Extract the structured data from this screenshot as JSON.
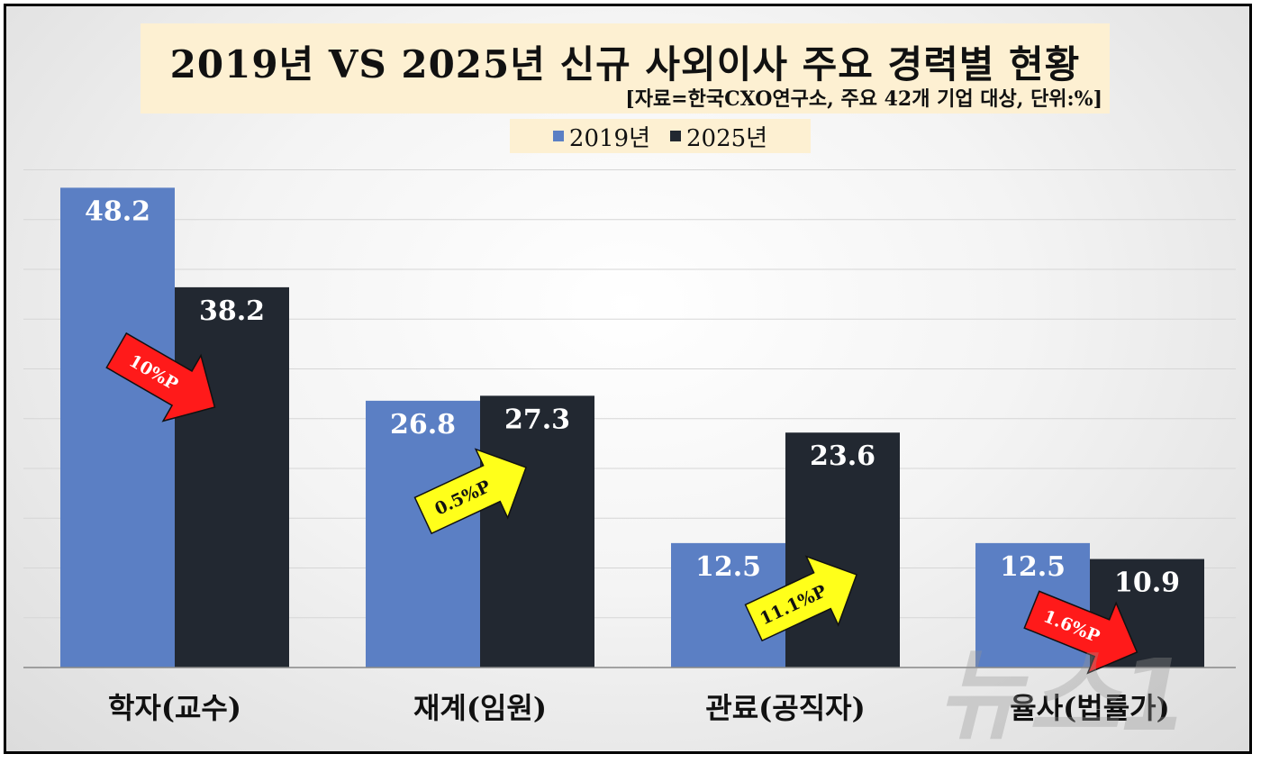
{
  "chart_data": {
    "type": "bar",
    "title": "2019년 VS 2025년 신규 사외이사 주요 경력별 현황",
    "subtitle": "[자료=한국CXO연구소, 주요 42개 기업 대상, 단위:%]",
    "categories": [
      "학자(교수)",
      "재계(임원)",
      "관료(공직자)",
      "율사(법률가)"
    ],
    "series": [
      {
        "name": "2019년",
        "color": "#5b7fc4",
        "values": [
          48.2,
          26.8,
          12.5,
          12.5
        ]
      },
      {
        "name": "2025년",
        "color": "#222831",
        "values": [
          38.2,
          27.3,
          23.6,
          10.9
        ]
      }
    ],
    "ylim": [
      0,
      50
    ],
    "grid": true,
    "legend_position": "top-center",
    "annotations": [
      {
        "category": "학자(교수)",
        "text": "10%P",
        "color": "#ff1a1a",
        "direction": "down"
      },
      {
        "category": "재계(임원)",
        "text": "0.5%P",
        "color": "#ffff1a",
        "direction": "up"
      },
      {
        "category": "관료(공직자)",
        "text": "11.1%P",
        "color": "#ffff1a",
        "direction": "up"
      },
      {
        "category": "율사(법률가)",
        "text": "1.6%P",
        "color": "#ff1a1a",
        "direction": "down"
      }
    ]
  },
  "watermark": "뉴스1"
}
